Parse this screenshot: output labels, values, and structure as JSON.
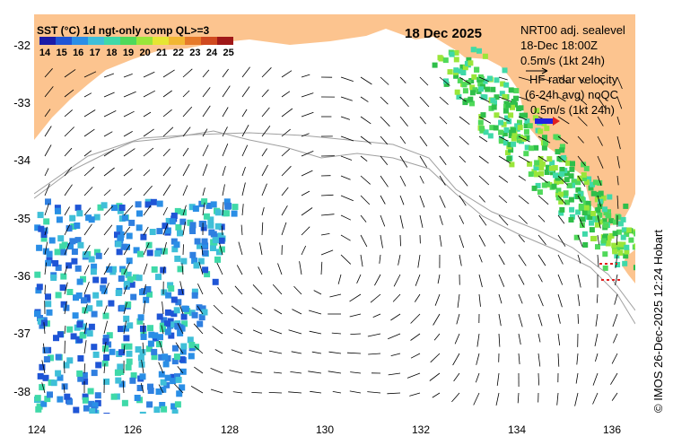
{
  "map": {
    "title": "SST (°C) 1d ngt-only comp QL>=3",
    "date": "18 Dec 2025",
    "colorbar": {
      "labels": [
        "14",
        "15",
        "16",
        "17",
        "18",
        "19",
        "20",
        "21",
        "22",
        "23",
        "24",
        "25"
      ],
      "colors": [
        "#1a1aa8",
        "#1f55d6",
        "#2a8ee6",
        "#3fbfd8",
        "#3fd9a8",
        "#4fd95a",
        "#9ae63a",
        "#e6e633",
        "#f2b733",
        "#e67a2a",
        "#d04a20",
        "#a01818"
      ]
    },
    "model_legend": {
      "line1": "NRT00 adj. sealevel",
      "line2": "18-Dec 18:00Z",
      "line3": "0.5m/s (1kt 24h)"
    },
    "radar_legend": {
      "line1": "HF radar velocity",
      "line2": "(6-24h avg) noQC",
      "line3": "0.5m/s (1kt 24h)"
    },
    "y_ticks": [
      "-32",
      "-33",
      "-34",
      "-35",
      "-36",
      "-37",
      "-38"
    ],
    "x_ticks": [
      "124",
      "126",
      "128",
      "130",
      "132",
      "134",
      "136"
    ],
    "credit": "© IMOS 26-Dec-2025 12:24 Hobart",
    "colors": {
      "land": "#fcc48f",
      "ocean": "#ffffff",
      "isobath": "#a0a0a0"
    }
  }
}
